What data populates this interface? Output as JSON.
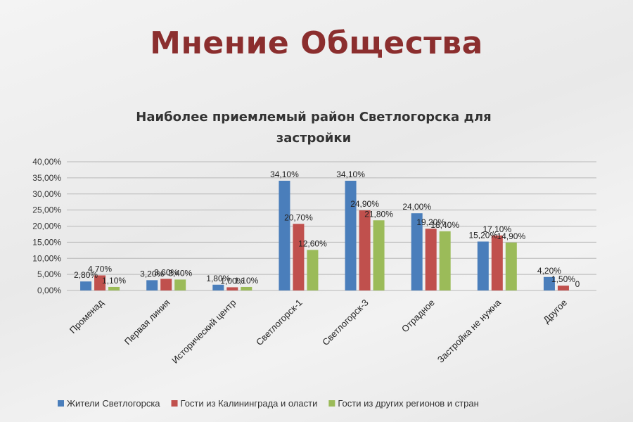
{
  "slide": {
    "title": "Мнение Общества"
  },
  "chart_data": {
    "type": "bar",
    "title": "Наиболее приемлемый район Светлогорска для застройки",
    "title_lines": [
      "Наиболее приемлемый район Светлогорска для",
      "застройки"
    ],
    "xlabel": "",
    "ylabel": "",
    "ylim": [
      0,
      40
    ],
    "yticks": [
      "0,00%",
      "5,00%",
      "10,00%",
      "15,00%",
      "20,00%",
      "25,00%",
      "30,00%",
      "35,00%",
      "40,00%"
    ],
    "grid": true,
    "legend_position": "bottom",
    "categories": [
      "Променад",
      "Первая линия",
      "Исторический центр",
      "Светлогорск-1",
      "Светлогорск-3",
      "Отрадное",
      "Застройка не нужна",
      "Другое"
    ],
    "series": [
      {
        "name": "Жители Светлогорска",
        "color": "#4a7ebb",
        "values": [
          2.8,
          3.2,
          1.8,
          34.1,
          34.1,
          24.0,
          15.2,
          4.2
        ],
        "labels": [
          "2,80%",
          "3,20%",
          "1,80%",
          "34,10%",
          "34,10%",
          "24,00%",
          "15,20%",
          "4,20%"
        ]
      },
      {
        "name": "Гости из Калининграда и оласти",
        "color": "#c0504d",
        "values": [
          4.7,
          3.6,
          1.0,
          20.7,
          24.9,
          19.2,
          17.1,
          1.5
        ],
        "labels": [
          "4,70%",
          "3,60%",
          "1,00%",
          "20,70%",
          "24,90%",
          "19,20%",
          "17,10%",
          "1,50%"
        ]
      },
      {
        "name": "Гости из других регионов и стран",
        "color": "#9bbb59",
        "values": [
          1.1,
          3.4,
          1.1,
          12.6,
          21.8,
          18.4,
          14.9,
          0
        ],
        "labels": [
          "1,10%",
          "3,40%",
          "1,10%",
          "12,60%",
          "21,80%",
          "18,40%",
          "14,90%",
          "0"
        ]
      }
    ]
  }
}
